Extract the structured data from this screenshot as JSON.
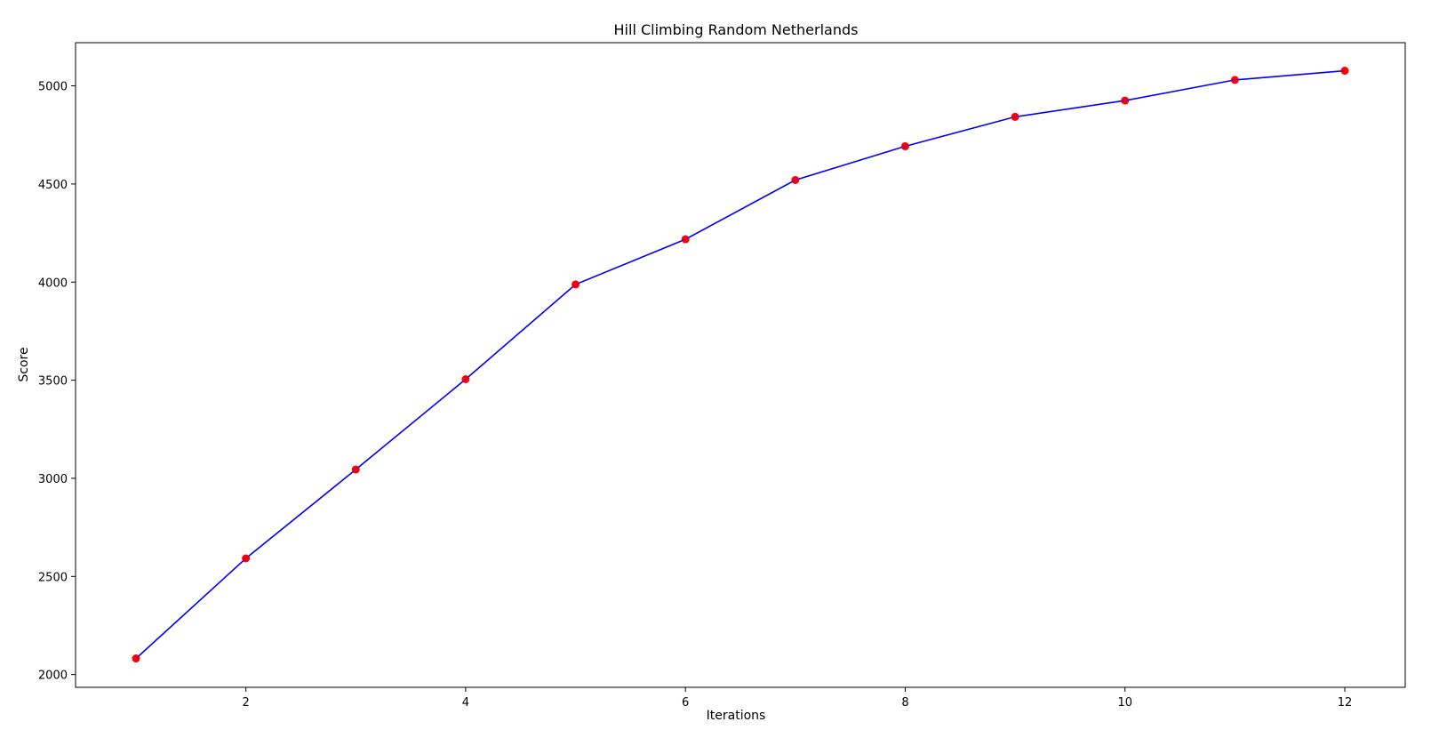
{
  "chart_data": {
    "type": "line",
    "title": "Hill Climbing Random Netherlands",
    "xlabel": "Iterations",
    "ylabel": "Score",
    "xlim": [
      0.45,
      12.55
    ],
    "ylim": [
      1935,
      5220
    ],
    "xticks": [
      2,
      4,
      6,
      8,
      10,
      12
    ],
    "yticks": [
      2000,
      2500,
      3000,
      3500,
      4000,
      4500,
      5000
    ],
    "grid": false,
    "line_color": "#0000ff",
    "marker_color": "#ff0000",
    "series": [
      {
        "x": [
          1,
          2,
          3,
          4,
          5,
          6,
          7,
          8,
          9,
          10,
          11,
          12
        ],
        "y": [
          2082,
          2592,
          3045,
          3505,
          3988,
          4218,
          4520,
          4692,
          4842,
          4925,
          5030,
          5077
        ]
      }
    ]
  }
}
